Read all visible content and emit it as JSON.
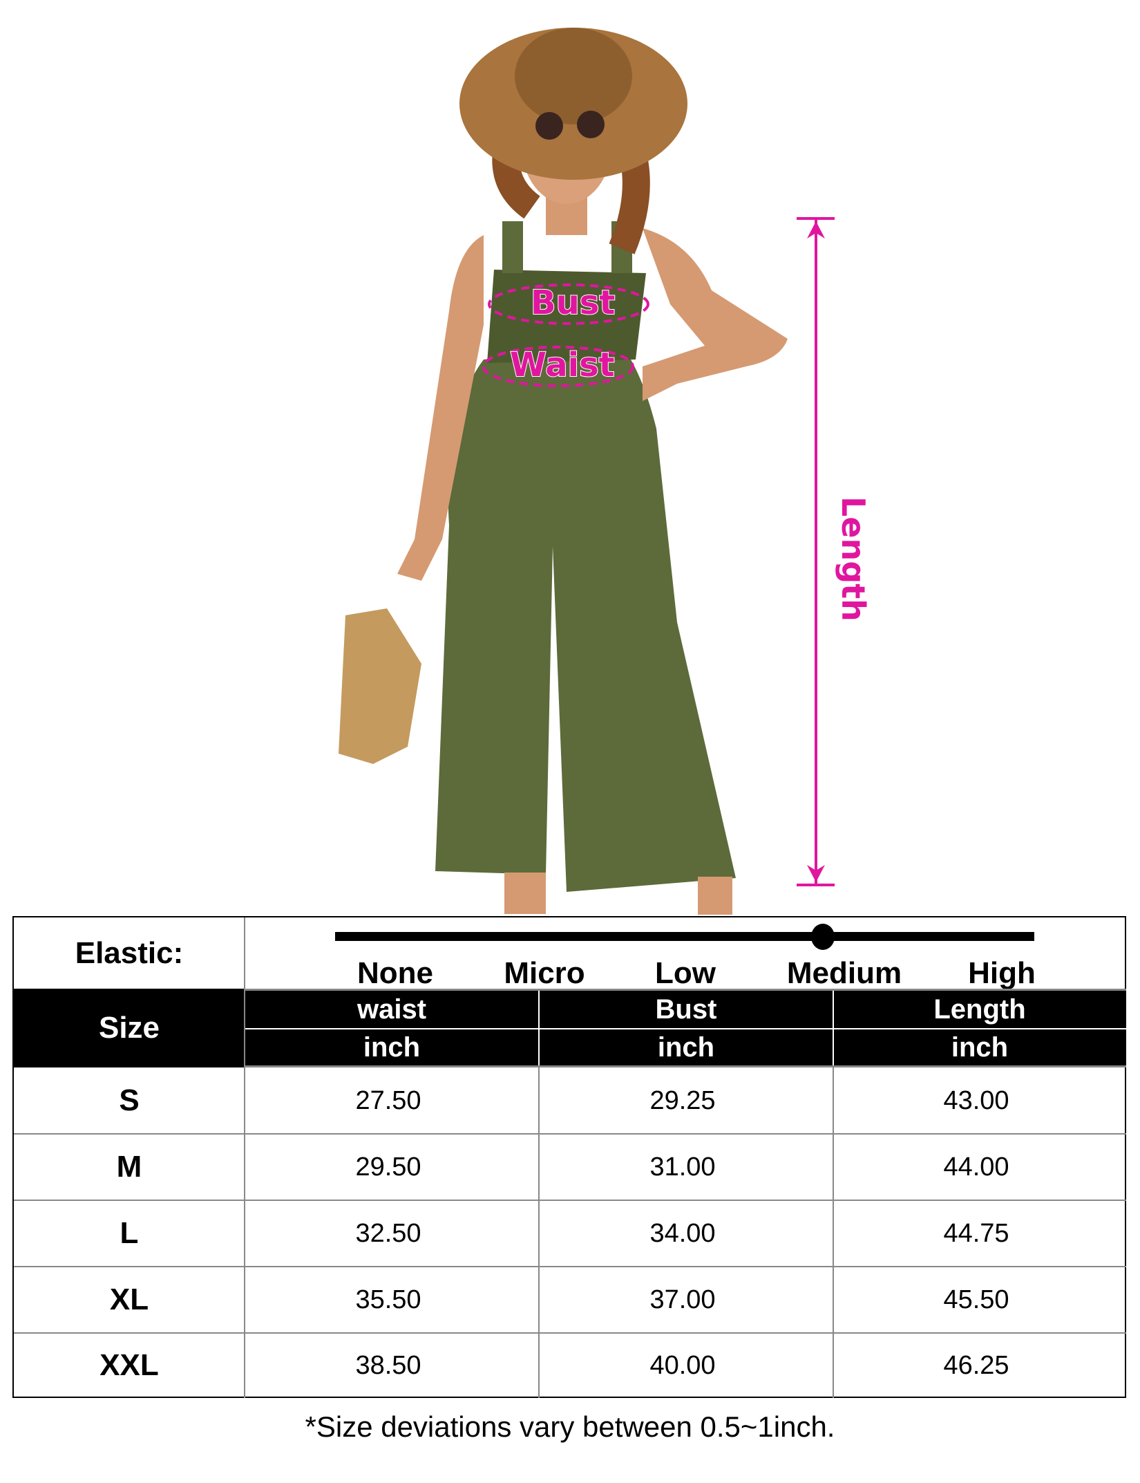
{
  "annotations": {
    "bust": "Bust",
    "waist": "Waist",
    "length": "Length"
  },
  "accent_color": "#e0169f",
  "elastic": {
    "label": "Elastic:",
    "levels": [
      "None",
      "Micro",
      "Low",
      "Medium",
      "High"
    ],
    "selected": "Medium"
  },
  "table": {
    "size_header": "Size",
    "columns": [
      {
        "name": "waist",
        "unit": "inch"
      },
      {
        "name": "Bust",
        "unit": "inch"
      },
      {
        "name": "Length",
        "unit": "inch"
      }
    ],
    "rows": [
      {
        "size": "S",
        "values": [
          "27.50",
          "29.25",
          "43.00"
        ]
      },
      {
        "size": "M",
        "values": [
          "29.50",
          "31.00",
          "44.00"
        ]
      },
      {
        "size": "L",
        "values": [
          "32.50",
          "34.00",
          "44.75"
        ]
      },
      {
        "size": "XL",
        "values": [
          "35.50",
          "37.00",
          "45.50"
        ]
      },
      {
        "size": "XXL",
        "values": [
          "38.50",
          "40.00",
          "46.25"
        ]
      }
    ]
  },
  "footnote": "*Size deviations vary between 0.5~1inch."
}
